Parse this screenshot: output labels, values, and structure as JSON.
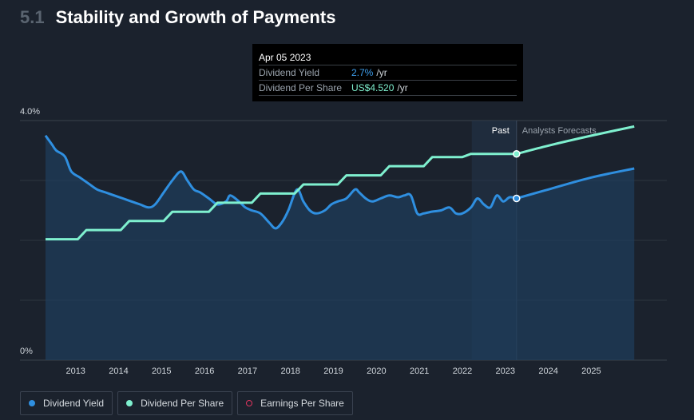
{
  "header": {
    "section_number": "5.1",
    "title": "Stability and Growth of Payments"
  },
  "tooltip": {
    "date": "Apr 05 2023",
    "rows": [
      {
        "label": "Dividend Yield",
        "value": "2.7%",
        "unit": "/yr"
      },
      {
        "label": "Dividend Per Share",
        "value": "US$4.520",
        "unit": "/yr"
      }
    ]
  },
  "legend": [
    {
      "label": "Dividend Yield",
      "color": "#2f8fe0"
    },
    {
      "label": "Dividend Per Share",
      "color": "#7ff0cf"
    },
    {
      "label": "Earnings Per Share",
      "color": "#e0355f"
    }
  ],
  "chart_data": {
    "type": "line",
    "title": "Stability and Growth of Payments",
    "y_tick_labels": [
      "4.0%",
      "0%"
    ],
    "ylim_yield": [
      0,
      4.0
    ],
    "x_tick_labels": [
      "2013",
      "2014",
      "2015",
      "2016",
      "2017",
      "2018",
      "2019",
      "2020",
      "2021",
      "2022",
      "2023",
      "2024",
      "2025"
    ],
    "xlim": [
      2012.3,
      2026.2
    ],
    "regions": {
      "past_label": "Past",
      "forecast_label": "Analysts Forecasts",
      "boundary_x": 2023.26
    },
    "grid": true,
    "legend_placement": "bottom-left",
    "colors": {
      "yield": "#2f8fe0",
      "dps": "#7ff0cf",
      "fill": "#1e3d5c"
    },
    "series": [
      {
        "name": "Dividend Yield",
        "unit": "%",
        "x": [
          2012.3,
          2012.45,
          2012.55,
          2012.75,
          2012.9,
          2013.1,
          2013.3,
          2013.5,
          2013.7,
          2013.9,
          2014.1,
          2014.3,
          2014.5,
          2014.7,
          2014.85,
          2015.05,
          2015.25,
          2015.45,
          2015.6,
          2015.75,
          2015.9,
          2016.1,
          2016.3,
          2016.5,
          2016.6,
          2016.8,
          2016.95,
          2017.1,
          2017.3,
          2017.5,
          2017.65,
          2017.8,
          2017.95,
          2018.15,
          2018.3,
          2018.45,
          2018.6,
          2018.8,
          2018.95,
          2019.1,
          2019.3,
          2019.5,
          2019.6,
          2019.75,
          2019.9,
          2020.1,
          2020.3,
          2020.5,
          2020.65,
          2020.8,
          2020.95,
          2021.1,
          2021.3,
          2021.5,
          2021.7,
          2021.85,
          2022.0,
          2022.2,
          2022.35,
          2022.5,
          2022.65,
          2022.8,
          2022.95,
          2023.1,
          2023.26
        ],
        "values": [
          3.75,
          3.6,
          3.5,
          3.4,
          3.15,
          3.05,
          2.95,
          2.85,
          2.8,
          2.75,
          2.7,
          2.65,
          2.6,
          2.55,
          2.6,
          2.8,
          3.0,
          3.15,
          3.0,
          2.85,
          2.8,
          2.7,
          2.6,
          2.65,
          2.75,
          2.65,
          2.55,
          2.5,
          2.45,
          2.3,
          2.2,
          2.3,
          2.5,
          2.85,
          2.65,
          2.5,
          2.45,
          2.5,
          2.6,
          2.65,
          2.7,
          2.85,
          2.8,
          2.7,
          2.65,
          2.7,
          2.75,
          2.72,
          2.75,
          2.75,
          2.45,
          2.45,
          2.48,
          2.5,
          2.55,
          2.45,
          2.45,
          2.55,
          2.7,
          2.6,
          2.55,
          2.75,
          2.65,
          2.72,
          2.7
        ]
      },
      {
        "name": "Dividend Yield",
        "note": "forecast",
        "x": [
          2023.26,
          2024.0,
          2025.0,
          2026.0
        ],
        "values": [
          2.7,
          2.85,
          3.05,
          3.2
        ]
      },
      {
        "name": "Dividend Per Share",
        "unit": "US$",
        "x": [
          2012.3,
          2013.05,
          2013.25,
          2014.05,
          2014.25,
          2015.05,
          2015.25,
          2016.1,
          2016.3,
          2017.1,
          2017.3,
          2018.1,
          2018.3,
          2019.1,
          2019.3,
          2020.1,
          2020.3,
          2021.1,
          2021.3,
          2022.0,
          2022.2,
          2023.26
        ],
        "values": [
          2.65,
          2.65,
          2.85,
          2.85,
          3.05,
          3.05,
          3.25,
          3.25,
          3.45,
          3.45,
          3.65,
          3.65,
          3.85,
          3.85,
          4.05,
          4.05,
          4.25,
          4.25,
          4.45,
          4.45,
          4.52,
          4.52
        ],
        "ylim": [
          0,
          5.25
        ]
      },
      {
        "name": "Dividend Per Share",
        "note": "forecast",
        "x": [
          2023.26,
          2024.0,
          2025.0,
          2026.0
        ],
        "values": [
          4.52,
          4.7,
          4.92,
          5.12
        ],
        "ylim": [
          0,
          5.25
        ]
      }
    ]
  }
}
